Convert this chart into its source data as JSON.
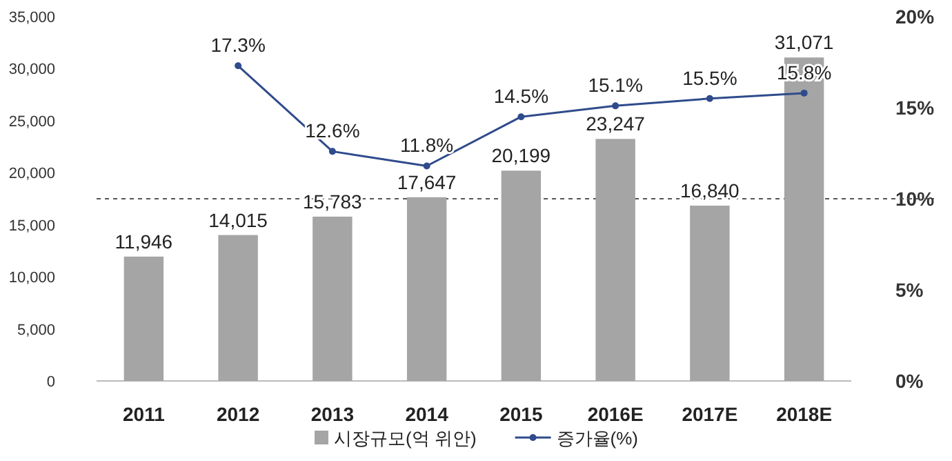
{
  "chart_data": {
    "type": "bar",
    "categories": [
      "2011",
      "2012",
      "2013",
      "2014",
      "2015",
      "2016E",
      "2017E",
      "2018E"
    ],
    "series": [
      {
        "name": "시장규모(억 위안)",
        "color": "#a5a5a5",
        "values": [
          11946,
          14015,
          15783,
          17647,
          20199,
          23247,
          16840,
          31071
        ],
        "value_labels": [
          "11,946",
          "14,015",
          "15,783",
          "17,647",
          "20,199",
          "23,247",
          "16,840",
          "31,071"
        ]
      },
      {
        "name": "증가율(%)",
        "type": "line",
        "axis": "y2",
        "color": "#2f4b8c",
        "marker": "circle",
        "values": [
          null,
          17.3,
          12.6,
          11.8,
          14.5,
          15.1,
          15.5,
          15.8
        ],
        "value_labels": [
          null,
          "17.3%",
          "12.6%",
          "11.8%",
          "14.5%",
          "15.1%",
          "15.5%",
          "15.8%"
        ]
      }
    ],
    "ylim": [
      0,
      35000
    ],
    "yticks": [
      {
        "value": 0,
        "label": "0"
      },
      {
        "value": 5000,
        "label": "5,000"
      },
      {
        "value": 10000,
        "label": "10,000"
      },
      {
        "value": 15000,
        "label": "15,000"
      },
      {
        "value": 20000,
        "label": "20,000"
      },
      {
        "value": 25000,
        "label": "25,000"
      },
      {
        "value": 30000,
        "label": "30,000"
      },
      {
        "value": 35000,
        "label": "35,000"
      }
    ],
    "y2lim": [
      0,
      20
    ],
    "y2ticks": [
      {
        "value": 0,
        "label": "0%"
      },
      {
        "value": 5,
        "label": "5%"
      },
      {
        "value": 10,
        "label": "10%"
      },
      {
        "value": 15,
        "label": "15%"
      },
      {
        "value": 20,
        "label": "20%"
      }
    ],
    "ref_lines": [
      {
        "axis": "y2",
        "value": 10,
        "color": "#555555",
        "line_style": "dashed"
      }
    ],
    "legend": "bottom"
  }
}
